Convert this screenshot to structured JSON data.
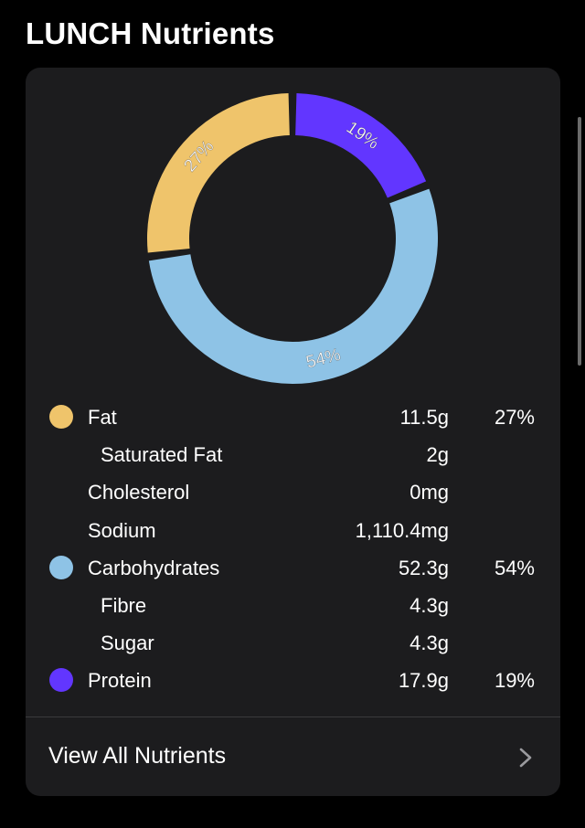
{
  "header": {
    "title": "LUNCH Nutrients"
  },
  "chart_data": {
    "type": "pie",
    "style": "donut",
    "slices": [
      {
        "label": "Protein",
        "value": 19,
        "label_text": "19%",
        "color": "#6236ff"
      },
      {
        "label": "Carbohydrates",
        "value": 54,
        "label_text": "54%",
        "color": "#8ec3e6"
      },
      {
        "label": "Fat",
        "value": 27,
        "label_text": "27%",
        "color": "#efc46b"
      }
    ]
  },
  "nutrients": [
    {
      "name": "Fat",
      "amount": "11.5g",
      "percent": "27%",
      "color": "#efc46b",
      "indent": false
    },
    {
      "name": "Saturated Fat",
      "amount": "2g",
      "percent": "",
      "color": "",
      "indent": true
    },
    {
      "name": "Cholesterol",
      "amount": "0mg",
      "percent": "",
      "color": "",
      "indent": false
    },
    {
      "name": "Sodium",
      "amount": "1,110.4mg",
      "percent": "",
      "color": "",
      "indent": false
    },
    {
      "name": "Carbohydrates",
      "amount": "52.3g",
      "percent": "54%",
      "color": "#8ec3e6",
      "indent": false
    },
    {
      "name": "Fibre",
      "amount": "4.3g",
      "percent": "",
      "color": "",
      "indent": true
    },
    {
      "name": "Sugar",
      "amount": "4.3g",
      "percent": "",
      "color": "",
      "indent": true
    },
    {
      "name": "Protein",
      "amount": "17.9g",
      "percent": "19%",
      "color": "#6236ff",
      "indent": false
    }
  ],
  "footer": {
    "label": "View All Nutrients",
    "chevron_icon": "chevron-right-icon"
  }
}
